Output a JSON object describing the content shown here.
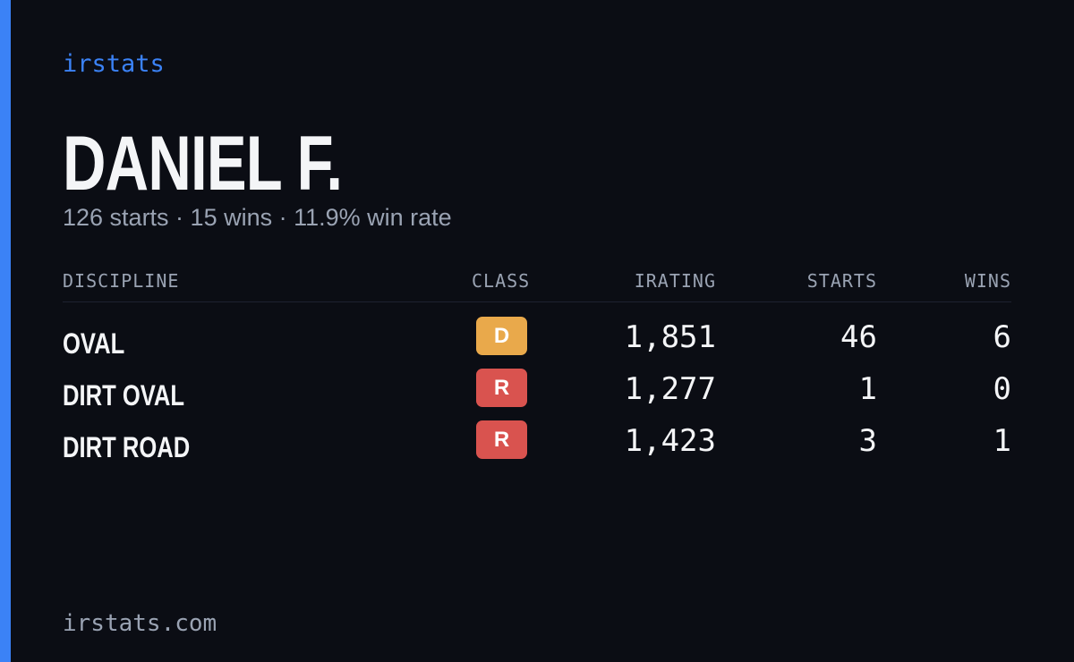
{
  "brand": "irstats",
  "profile": {
    "name": "DANIEL F.",
    "summary": "126 starts · 15 wins · 11.9% win rate"
  },
  "table": {
    "headers": [
      "DISCIPLINE",
      "CLASS",
      "IRATING",
      "STARTS",
      "WINS"
    ],
    "rows": [
      {
        "discipline": "OVAL",
        "class": "D",
        "class_color": "#e9a94b",
        "irating": "1,851",
        "starts": 46,
        "wins": 6
      },
      {
        "discipline": "DIRT OVAL",
        "class": "R",
        "class_color": "#d9534f",
        "irating": "1,277",
        "starts": 1,
        "wins": 0
      },
      {
        "discipline": "DIRT ROAD",
        "class": "R",
        "class_color": "#d9534f",
        "irating": "1,423",
        "starts": 3,
        "wins": 1
      }
    ]
  },
  "footer": "irstats.com"
}
